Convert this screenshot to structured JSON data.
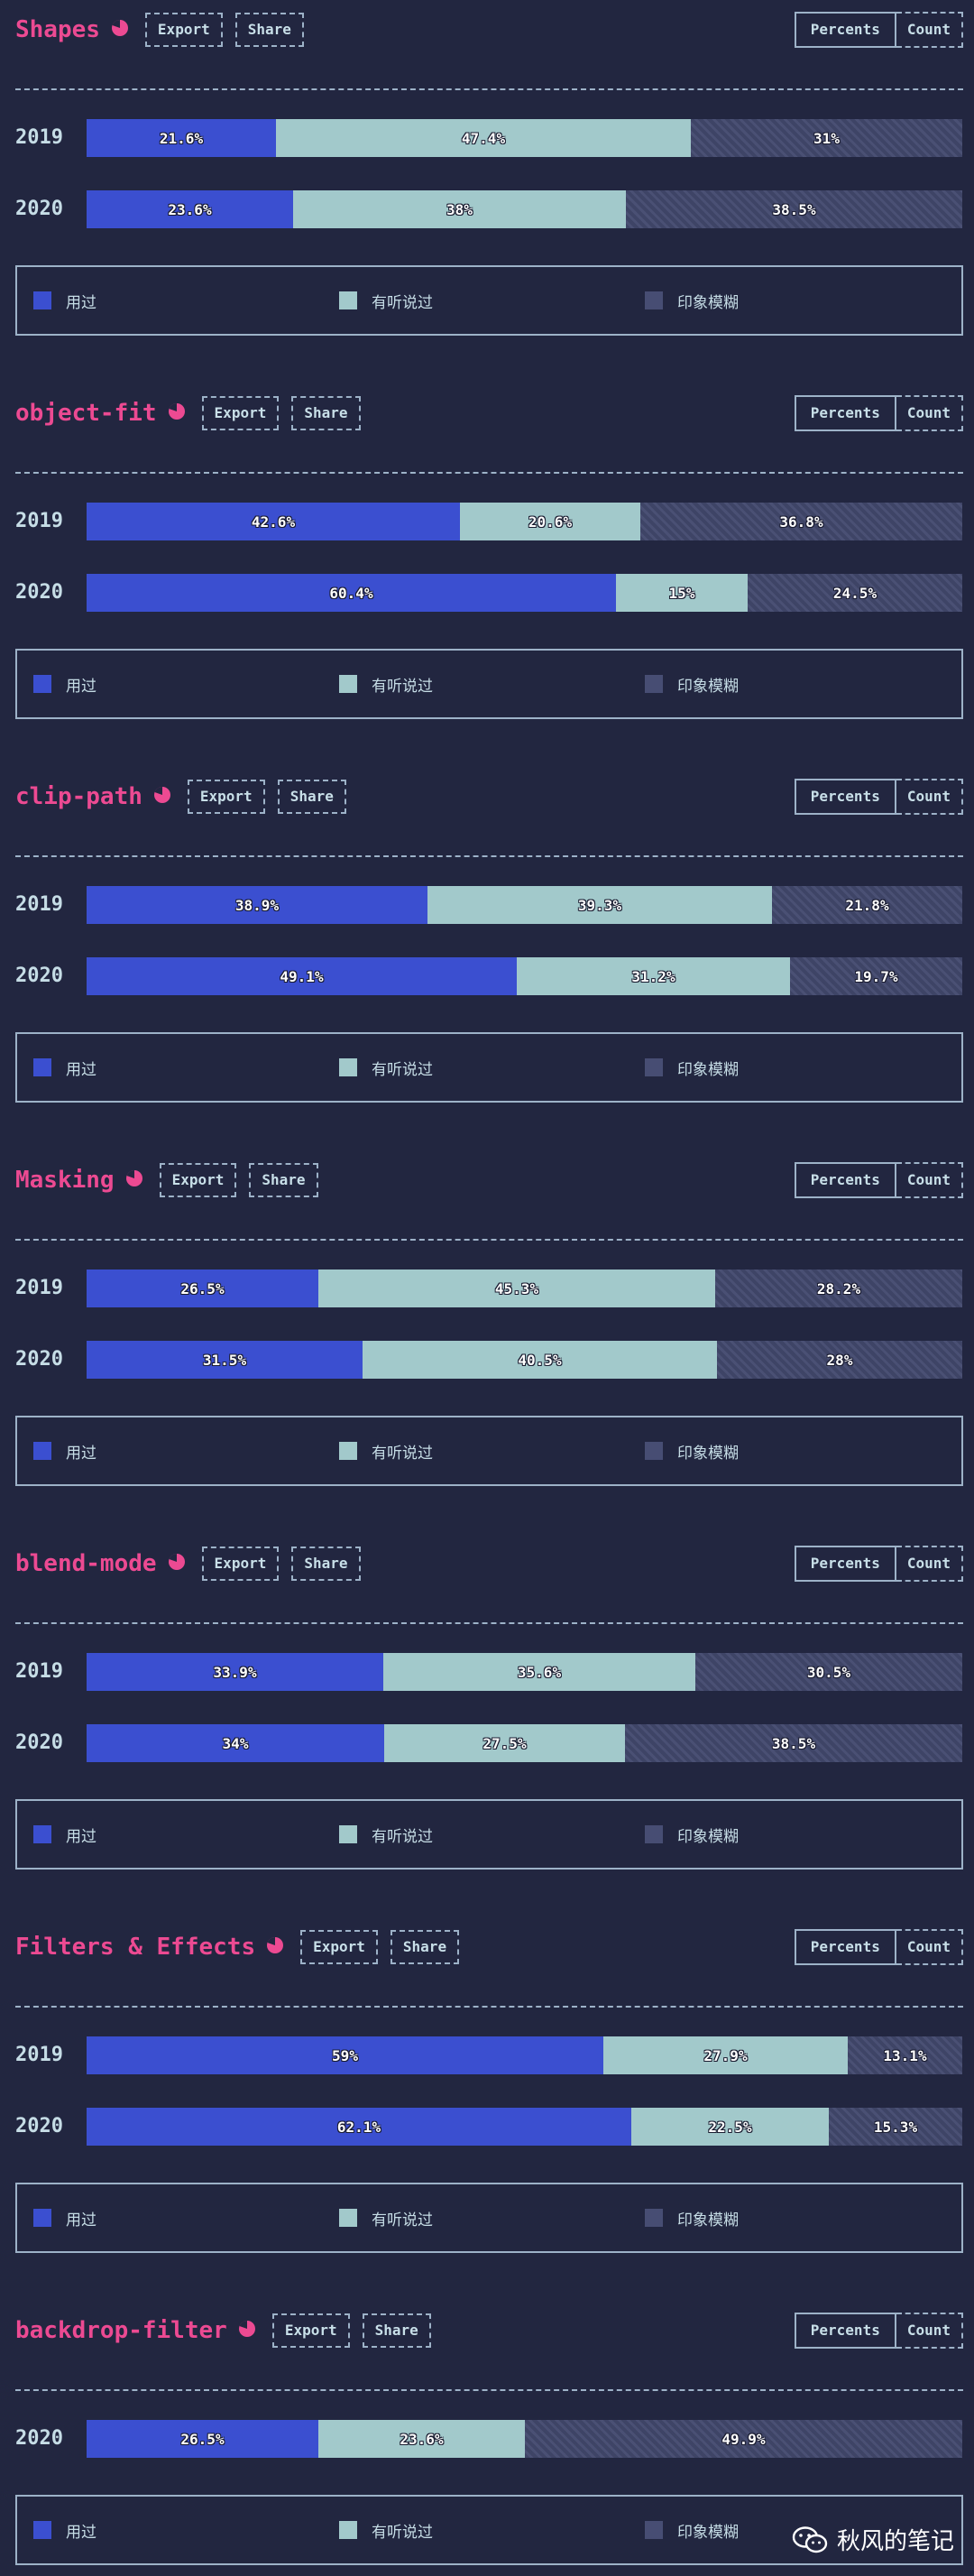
{
  "legend_labels": [
    "用过",
    "有听说过",
    "印象模糊"
  ],
  "colors": {
    "used": "#3b4fd0",
    "heard": "#a2c9cb",
    "vague": "#3e4466",
    "accent": "#ec4a92"
  },
  "buttons": {
    "export": "Export",
    "share": "Share",
    "percents": "Percents",
    "count": "Count"
  },
  "watermark": "秋风的笔记",
  "chart_data": [
    {
      "type": "bar",
      "orientation": "horizontal",
      "stacked": true,
      "title": "Shapes",
      "categories": [
        "2019",
        "2020"
      ],
      "series": [
        {
          "name": "用过",
          "values": [
            21.6,
            23.6
          ],
          "labels": [
            "21.6%",
            "23.6%"
          ]
        },
        {
          "name": "有听说过",
          "values": [
            47.4,
            38
          ],
          "labels": [
            "47.4%",
            "38%"
          ]
        },
        {
          "name": "印象模糊",
          "values": [
            31,
            38.5
          ],
          "labels": [
            "31%",
            "38.5%"
          ]
        }
      ]
    },
    {
      "type": "bar",
      "orientation": "horizontal",
      "stacked": true,
      "title": "object-fit",
      "categories": [
        "2019",
        "2020"
      ],
      "series": [
        {
          "name": "用过",
          "values": [
            42.6,
            60.4
          ],
          "labels": [
            "42.6%",
            "60.4%"
          ]
        },
        {
          "name": "有听说过",
          "values": [
            20.6,
            15
          ],
          "labels": [
            "20.6%",
            "15%"
          ]
        },
        {
          "name": "印象模糊",
          "values": [
            36.8,
            24.5
          ],
          "labels": [
            "36.8%",
            "24.5%"
          ]
        }
      ]
    },
    {
      "type": "bar",
      "orientation": "horizontal",
      "stacked": true,
      "title": "clip-path",
      "categories": [
        "2019",
        "2020"
      ],
      "series": [
        {
          "name": "用过",
          "values": [
            38.9,
            49.1
          ],
          "labels": [
            "38.9%",
            "49.1%"
          ]
        },
        {
          "name": "有听说过",
          "values": [
            39.3,
            31.2
          ],
          "labels": [
            "39.3%",
            "31.2%"
          ]
        },
        {
          "name": "印象模糊",
          "values": [
            21.8,
            19.7
          ],
          "labels": [
            "21.8%",
            "19.7%"
          ]
        }
      ]
    },
    {
      "type": "bar",
      "orientation": "horizontal",
      "stacked": true,
      "title": "Masking",
      "categories": [
        "2019",
        "2020"
      ],
      "series": [
        {
          "name": "用过",
          "values": [
            26.5,
            31.5
          ],
          "labels": [
            "26.5%",
            "31.5%"
          ]
        },
        {
          "name": "有听说过",
          "values": [
            45.3,
            40.5
          ],
          "labels": [
            "45.3%",
            "40.5%"
          ]
        },
        {
          "name": "印象模糊",
          "values": [
            28.2,
            28
          ],
          "labels": [
            "28.2%",
            "28%"
          ]
        }
      ]
    },
    {
      "type": "bar",
      "orientation": "horizontal",
      "stacked": true,
      "title": "blend-mode",
      "categories": [
        "2019",
        "2020"
      ],
      "series": [
        {
          "name": "用过",
          "values": [
            33.9,
            34
          ],
          "labels": [
            "33.9%",
            "34%"
          ]
        },
        {
          "name": "有听说过",
          "values": [
            35.6,
            27.5
          ],
          "labels": [
            "35.6%",
            "27.5%"
          ]
        },
        {
          "name": "印象模糊",
          "values": [
            30.5,
            38.5
          ],
          "labels": [
            "30.5%",
            "38.5%"
          ]
        }
      ]
    },
    {
      "type": "bar",
      "orientation": "horizontal",
      "stacked": true,
      "title": "Filters & Effects",
      "categories": [
        "2019",
        "2020"
      ],
      "series": [
        {
          "name": "用过",
          "values": [
            59,
            62.1
          ],
          "labels": [
            "59%",
            "62.1%"
          ]
        },
        {
          "name": "有听说过",
          "values": [
            27.9,
            22.5
          ],
          "labels": [
            "27.9%",
            "22.5%"
          ]
        },
        {
          "name": "印象模糊",
          "values": [
            13.1,
            15.3
          ],
          "labels": [
            "13.1%",
            "15.3%"
          ]
        }
      ]
    },
    {
      "type": "bar",
      "orientation": "horizontal",
      "stacked": true,
      "title": "backdrop-filter",
      "categories": [
        "2020"
      ],
      "series": [
        {
          "name": "用过",
          "values": [
            26.5
          ],
          "labels": [
            "26.5%"
          ]
        },
        {
          "name": "有听说过",
          "values": [
            23.6
          ],
          "labels": [
            "23.6%"
          ]
        },
        {
          "name": "印象模糊",
          "values": [
            49.9
          ],
          "labels": [
            "49.9%"
          ]
        }
      ]
    }
  ]
}
